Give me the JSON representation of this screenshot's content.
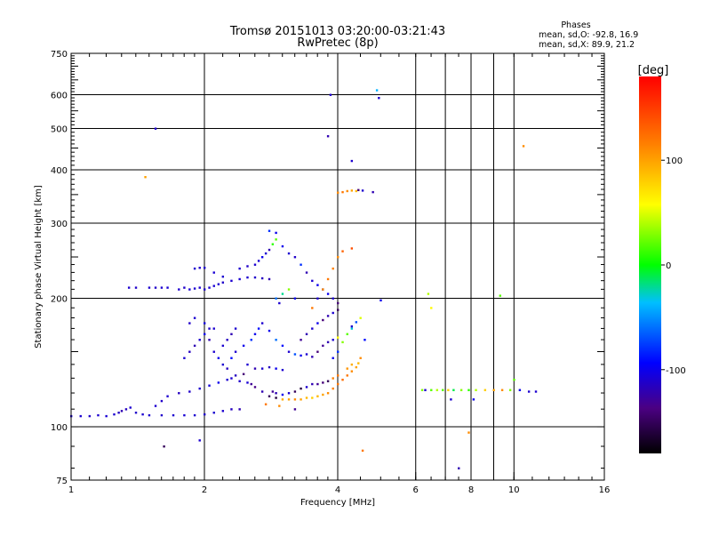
{
  "chart_data": {
    "type": "scatter",
    "title": "Tromsø 20151013 03:20:00-03:21:43",
    "subtitle": "RwPretec (8p)",
    "xlabel": "Frequency [MHz]",
    "ylabel": "Stationary phase Virtual Height [km]",
    "x_scale": "log2",
    "y_scale": "log",
    "xlim": [
      1,
      16
    ],
    "ylim": [
      75,
      750
    ],
    "x_ticks": [
      1,
      2,
      4,
      6,
      8,
      10,
      16
    ],
    "x_tick_labels": [
      "1",
      "2",
      "4",
      "6",
      "8",
      "10",
      "16"
    ],
    "x_grid": [
      2,
      4,
      6,
      7,
      8,
      9,
      10
    ],
    "y_ticks": [
      75,
      100,
      200,
      300,
      400,
      500,
      600,
      750
    ],
    "y_tick_labels": [
      "75",
      "100",
      "200",
      "300",
      "400",
      "500",
      "600",
      "750"
    ],
    "y_grid": [
      100,
      200,
      300,
      400,
      500,
      600
    ],
    "grid": true,
    "stats": {
      "heading": "Phases",
      "line1": "mean, sd,O: -92.8, 16.9",
      "line2": "mean, sd,X:  89.9, 21.2"
    },
    "colorbar": {
      "label": "[deg]",
      "range": [
        -180,
        180
      ],
      "ticks": [
        100,
        0,
        -100
      ],
      "tick_labels": [
        "100",
        "0",
        "-100"
      ]
    },
    "points": [
      [
        1.0,
        106,
        -110
      ],
      [
        1.05,
        106,
        -110
      ],
      [
        1.1,
        106,
        -112
      ],
      [
        1.15,
        106.5,
        -110
      ],
      [
        1.2,
        106,
        -108
      ],
      [
        1.25,
        107,
        -110
      ],
      [
        1.28,
        108,
        -115
      ],
      [
        1.3,
        109,
        -120
      ],
      [
        1.33,
        110,
        -115
      ],
      [
        1.36,
        111,
        -110
      ],
      [
        1.4,
        108,
        -112
      ],
      [
        1.45,
        107,
        -110
      ],
      [
        1.5,
        106.5,
        -110
      ],
      [
        1.6,
        106.5,
        -112
      ],
      [
        1.7,
        106.5,
        -110
      ],
      [
        1.8,
        106.5,
        -108
      ],
      [
        1.9,
        106.5,
        -110
      ],
      [
        2.0,
        107,
        -112
      ],
      [
        2.1,
        108,
        -110
      ],
      [
        2.2,
        109,
        -110
      ],
      [
        2.3,
        110,
        -115
      ],
      [
        2.4,
        110,
        -120
      ],
      [
        1.55,
        112,
        -110
      ],
      [
        1.6,
        115,
        -112
      ],
      [
        1.65,
        118,
        -110
      ],
      [
        1.75,
        120,
        -115
      ],
      [
        1.85,
        121,
        -112
      ],
      [
        1.95,
        123,
        -110
      ],
      [
        2.05,
        125,
        -105
      ],
      [
        2.15,
        127,
        -100
      ],
      [
        2.25,
        129,
        -110
      ],
      [
        2.35,
        132,
        -115
      ],
      [
        2.45,
        133,
        -140
      ],
      [
        2.55,
        126,
        -130
      ],
      [
        2.6,
        124,
        -135
      ],
      [
        2.7,
        121,
        -120
      ],
      [
        2.8,
        118,
        -150
      ],
      [
        2.9,
        117,
        -160
      ],
      [
        3.0,
        116,
        95
      ],
      [
        3.1,
        116,
        100
      ],
      [
        3.2,
        116,
        110
      ],
      [
        3.3,
        116,
        100
      ],
      [
        3.4,
        117,
        90
      ],
      [
        3.5,
        117,
        80
      ],
      [
        3.6,
        118,
        90
      ],
      [
        3.7,
        119,
        100
      ],
      [
        3.8,
        120,
        110
      ],
      [
        3.9,
        123,
        115
      ],
      [
        4.0,
        126,
        120
      ],
      [
        4.1,
        129,
        125
      ],
      [
        4.2,
        132,
        120
      ],
      [
        4.3,
        135,
        110
      ],
      [
        4.4,
        138,
        100
      ],
      [
        4.45,
        141,
        90
      ],
      [
        4.5,
        145,
        110
      ],
      [
        4.3,
        140,
        95
      ],
      [
        4.2,
        137,
        105
      ],
      [
        4.0,
        132,
        120
      ],
      [
        3.9,
        130,
        115
      ],
      [
        3.8,
        128,
        -150
      ],
      [
        3.7,
        127,
        -140
      ],
      [
        3.6,
        126,
        -130
      ],
      [
        3.5,
        126,
        -120
      ],
      [
        3.4,
        124,
        -110
      ],
      [
        3.3,
        123,
        -160
      ],
      [
        3.2,
        121,
        -150
      ],
      [
        3.1,
        120,
        -110
      ],
      [
        3.0,
        119,
        -100
      ],
      [
        2.9,
        120,
        -120
      ],
      [
        2.85,
        121,
        -130
      ],
      [
        1.8,
        145,
        -110
      ],
      [
        1.85,
        150,
        -115
      ],
      [
        1.9,
        155,
        -120
      ],
      [
        1.95,
        160,
        -110
      ],
      [
        2.0,
        165,
        -100
      ],
      [
        2.05,
        170,
        -110
      ],
      [
        1.85,
        175,
        -112
      ],
      [
        1.9,
        180,
        -110
      ],
      [
        2.0,
        175,
        -105
      ],
      [
        2.1,
        170,
        -110
      ],
      [
        2.05,
        160,
        -120
      ],
      [
        2.1,
        150,
        -110
      ],
      [
        2.15,
        145,
        -100
      ],
      [
        2.2,
        140,
        -110
      ],
      [
        2.25,
        137,
        -115
      ],
      [
        2.3,
        145,
        -90
      ],
      [
        2.35,
        150,
        -110
      ],
      [
        2.45,
        155,
        -100
      ],
      [
        2.55,
        160,
        -80
      ],
      [
        2.6,
        165,
        -100
      ],
      [
        2.65,
        170,
        -90
      ],
      [
        2.7,
        175,
        -110
      ],
      [
        2.8,
        168,
        -100
      ],
      [
        2.9,
        160,
        -60
      ],
      [
        3.0,
        155,
        -90
      ],
      [
        3.1,
        150,
        -110
      ],
      [
        3.2,
        148,
        -70
      ],
      [
        3.3,
        147,
        -100
      ],
      [
        3.4,
        148,
        -110
      ],
      [
        3.5,
        146,
        -120
      ],
      [
        3.6,
        150,
        -140
      ],
      [
        3.7,
        155,
        -130
      ],
      [
        3.8,
        158,
        -120
      ],
      [
        3.9,
        160,
        -110
      ],
      [
        4.0,
        162,
        60
      ],
      [
        3.9,
        145,
        -100
      ],
      [
        4.0,
        150,
        -80
      ],
      [
        4.1,
        158,
        30
      ],
      [
        4.2,
        165,
        20
      ],
      [
        4.3,
        170,
        -30
      ],
      [
        4.4,
        176,
        -70
      ],
      [
        4.5,
        180,
        50
      ],
      [
        3.3,
        160,
        -130
      ],
      [
        3.4,
        165,
        -120
      ],
      [
        3.5,
        170,
        -110
      ],
      [
        3.6,
        175,
        -100
      ],
      [
        3.7,
        178,
        -140
      ],
      [
        3.8,
        182,
        -120
      ],
      [
        3.9,
        185,
        -110
      ],
      [
        4.0,
        188,
        -150
      ],
      [
        2.5,
        140,
        -110
      ],
      [
        2.6,
        137,
        -120
      ],
      [
        2.7,
        137,
        -110
      ],
      [
        2.8,
        138,
        -115
      ],
      [
        2.9,
        137,
        -100
      ],
      [
        3.0,
        136,
        -110
      ],
      [
        2.3,
        130,
        -110
      ],
      [
        2.4,
        128,
        -112
      ],
      [
        2.5,
        127,
        -108
      ],
      [
        2.2,
        155,
        -110
      ],
      [
        2.25,
        160,
        -115
      ],
      [
        2.3,
        165,
        -120
      ],
      [
        2.35,
        170,
        -110
      ],
      [
        1.75,
        210,
        -110
      ],
      [
        1.8,
        212,
        -112
      ],
      [
        1.85,
        210,
        -108
      ],
      [
        1.9,
        211,
        -110
      ],
      [
        1.95,
        212,
        -110
      ],
      [
        2.0,
        210,
        -112
      ],
      [
        2.05,
        212,
        -110
      ],
      [
        2.1,
        214,
        -108
      ],
      [
        2.15,
        216,
        -110
      ],
      [
        2.2,
        218,
        -112
      ],
      [
        2.3,
        220,
        -110
      ],
      [
        2.4,
        222,
        -108
      ],
      [
        2.5,
        224,
        -110
      ],
      [
        2.6,
        224,
        -112
      ],
      [
        2.7,
        223,
        -115
      ],
      [
        2.8,
        222,
        -120
      ],
      [
        1.5,
        212,
        -110
      ],
      [
        1.55,
        212,
        -112
      ],
      [
        1.6,
        212,
        -110
      ],
      [
        1.65,
        212,
        -108
      ],
      [
        1.35,
        212,
        -110
      ],
      [
        1.4,
        212,
        -112
      ],
      [
        1.9,
        235,
        -110
      ],
      [
        1.95,
        236,
        -112
      ],
      [
        2.0,
        236,
        -110
      ],
      [
        2.1,
        230,
        -108
      ],
      [
        2.2,
        225,
        -110
      ],
      [
        2.4,
        235,
        -110
      ],
      [
        2.5,
        238,
        -112
      ],
      [
        2.6,
        240,
        -110
      ],
      [
        2.65,
        245,
        -108
      ],
      [
        2.7,
        250,
        -100
      ],
      [
        2.75,
        255,
        -110
      ],
      [
        2.8,
        260,
        -120
      ],
      [
        2.85,
        268,
        10
      ],
      [
        2.9,
        275,
        20
      ],
      [
        2.8,
        288,
        -80
      ],
      [
        2.9,
        285,
        -100
      ],
      [
        3.0,
        265,
        -100
      ],
      [
        3.1,
        255,
        -110
      ],
      [
        3.2,
        250,
        -112
      ],
      [
        3.3,
        240,
        -80
      ],
      [
        3.4,
        230,
        -120
      ],
      [
        3.5,
        220,
        -110
      ],
      [
        3.6,
        215,
        -100
      ],
      [
        3.7,
        210,
        -110
      ],
      [
        3.8,
        205,
        -100
      ],
      [
        3.9,
        200,
        -110
      ],
      [
        4.0,
        195,
        -140
      ],
      [
        3.5,
        190,
        120
      ],
      [
        3.6,
        200,
        -110
      ],
      [
        3.7,
        210,
        110
      ],
      [
        3.8,
        222,
        120
      ],
      [
        3.9,
        235,
        115
      ],
      [
        4.0,
        250,
        110
      ],
      [
        4.1,
        258,
        130
      ],
      [
        4.3,
        262,
        140
      ],
      [
        2.9,
        200,
        -60
      ],
      [
        3.0,
        205,
        -20
      ],
      [
        3.1,
        210,
        30
      ],
      [
        3.2,
        200,
        -100
      ],
      [
        2.95,
        195,
        -110
      ],
      [
        1.55,
        500,
        -110
      ],
      [
        1.47,
        385,
        100
      ],
      [
        1.62,
        90,
        -150
      ],
      [
        1.95,
        93,
        -110
      ],
      [
        3.85,
        600,
        -110
      ],
      [
        3.8,
        480,
        -120
      ],
      [
        4.1,
        355,
        120
      ],
      [
        4.2,
        357,
        110
      ],
      [
        4.3,
        358,
        100
      ],
      [
        4.4,
        357,
        90
      ],
      [
        4.45,
        359,
        -140
      ],
      [
        4.55,
        358,
        -110
      ],
      [
        4.0,
        354,
        110
      ],
      [
        4.8,
        355,
        -120
      ],
      [
        4.95,
        590,
        -110
      ],
      [
        4.9,
        615,
        -40
      ],
      [
        4.3,
        420,
        -110
      ],
      [
        4.55,
        88,
        120
      ],
      [
        7.5,
        80,
        -120
      ],
      [
        7.9,
        97,
        110
      ],
      [
        6.2,
        122,
        30
      ],
      [
        6.3,
        122,
        -110
      ],
      [
        6.5,
        122,
        20
      ],
      [
        6.7,
        122,
        40
      ],
      [
        6.9,
        122,
        20
      ],
      [
        7.1,
        122,
        80
      ],
      [
        7.3,
        122,
        -10
      ],
      [
        7.6,
        122,
        30
      ],
      [
        7.9,
        122,
        10
      ],
      [
        8.2,
        122,
        40
      ],
      [
        8.6,
        122,
        80
      ],
      [
        9.0,
        122,
        100
      ],
      [
        9.4,
        122,
        110
      ],
      [
        9.8,
        122,
        30
      ],
      [
        10.3,
        122,
        -100
      ],
      [
        10.8,
        121,
        -110
      ],
      [
        11.2,
        121,
        -110
      ],
      [
        10.0,
        129,
        20
      ],
      [
        7.2,
        116,
        -110
      ],
      [
        8.1,
        116,
        -100
      ],
      [
        10.5,
        455,
        110
      ],
      [
        9.3,
        203,
        20
      ],
      [
        6.4,
        205,
        40
      ],
      [
        6.5,
        190,
        60
      ],
      [
        5.0,
        198,
        -100
      ],
      [
        4.3,
        172,
        -110
      ],
      [
        4.6,
        160,
        -90
      ],
      [
        3.2,
        110,
        -130
      ],
      [
        2.95,
        112,
        110
      ],
      [
        2.75,
        113,
        120
      ]
    ]
  }
}
